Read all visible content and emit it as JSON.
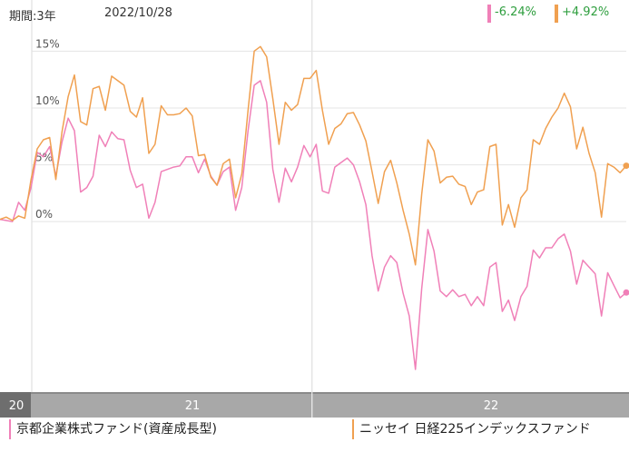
{
  "header": {
    "period_label": "期間:3年",
    "date": "2022/10/28"
  },
  "changes": [
    {
      "text": "-6.24%",
      "bar_color": "#f080b8",
      "text_color": "#2e9e3e"
    },
    {
      "text": "+4.92%",
      "bar_color": "#f0a050",
      "text_color": "#2e9e3e"
    }
  ],
  "legend": [
    {
      "label": "京都企業株式ファンド(資産成長型)",
      "color": "#f080b8"
    },
    {
      "label": "ニッセイ 日経225インデックスファンド",
      "color": "#f0a050"
    }
  ],
  "chart_data": {
    "type": "line",
    "y_unit": "%",
    "y_ticks": [
      "15%",
      "10%",
      "5%",
      "0%"
    ],
    "y_tick_values": [
      15,
      10,
      5,
      0
    ],
    "ylim": [
      -15,
      19.5
    ],
    "x_ticks": [
      "20",
      "21",
      "22"
    ],
    "x_tick_positions": [
      0,
      5,
      17
    ],
    "x_range": [
      0,
      36
    ],
    "grid": true,
    "series": [
      {
        "name": "京都企業株式ファンド(資産成長型)",
        "color": "#f080b8",
        "values": [
          0.2,
          0.1,
          0.0,
          1.7,
          1.0,
          3.0,
          6.1,
          5.7,
          6.6,
          4.0,
          7.0,
          9.1,
          8.0,
          2.6,
          3.0,
          4.0,
          7.6,
          6.6,
          7.9,
          7.3,
          7.2,
          4.5,
          3.0,
          3.3,
          0.3,
          1.7,
          4.4,
          4.6,
          4.8,
          4.9,
          5.7,
          5.7,
          4.3,
          5.5,
          4.0,
          3.2,
          4.4,
          4.8,
          1.0,
          3.0,
          8.0,
          12.0,
          12.4,
          10.5,
          4.6,
          1.7,
          4.7,
          3.5,
          4.8,
          6.7,
          5.7,
          6.8,
          2.7,
          2.5,
          4.8,
          5.2,
          5.6,
          5.0,
          3.5,
          1.5,
          -3.0,
          -6.1,
          -4.0,
          -3.0,
          -3.6,
          -6.3,
          -8.3,
          -13.0,
          -5.9,
          -0.7,
          -2.6,
          -6.1,
          -6.6,
          -6.0,
          -6.6,
          -6.4,
          -7.4,
          -6.6,
          -7.4,
          -4.0,
          -3.6,
          -7.9,
          -6.9,
          -8.7,
          -6.6,
          -5.7,
          -2.5,
          -3.2,
          -2.3,
          -2.3,
          -1.5,
          -1.1,
          -2.6,
          -5.5,
          -3.4,
          -4.0,
          -4.6,
          -8.3,
          -4.5,
          -5.6,
          -6.7,
          -6.24
        ]
      },
      {
        "name": "ニッセイ 日経225インデックスファンド",
        "color": "#f0a050",
        "values": [
          0.2,
          0.4,
          0.1,
          0.5,
          0.3,
          3.7,
          6.4,
          7.2,
          7.4,
          3.7,
          7.9,
          11.0,
          12.9,
          8.8,
          8.5,
          11.7,
          11.9,
          9.8,
          12.8,
          12.4,
          12.0,
          9.7,
          9.2,
          10.9,
          6.0,
          6.8,
          10.2,
          9.4,
          9.4,
          9.5,
          10.0,
          9.3,
          5.8,
          5.9,
          3.9,
          3.2,
          5.1,
          5.5,
          2.1,
          4.2,
          9.8,
          15.0,
          15.4,
          14.5,
          10.8,
          6.8,
          10.5,
          9.8,
          10.3,
          12.6,
          12.6,
          13.3,
          9.8,
          6.8,
          8.2,
          8.6,
          9.5,
          9.6,
          8.5,
          7.1,
          4.4,
          1.6,
          4.4,
          5.4,
          3.4,
          1.0,
          -1.1,
          -3.8,
          2.4,
          7.2,
          6.2,
          3.4,
          3.9,
          4.0,
          3.3,
          3.1,
          1.5,
          2.6,
          2.8,
          6.6,
          6.8,
          -0.3,
          1.5,
          -0.5,
          2.1,
          2.8,
          7.2,
          6.8,
          8.2,
          9.2,
          10.0,
          11.3,
          10.1,
          6.4,
          8.3,
          6.0,
          4.3,
          0.4,
          5.1,
          4.8,
          4.3,
          4.92
        ]
      }
    ]
  }
}
